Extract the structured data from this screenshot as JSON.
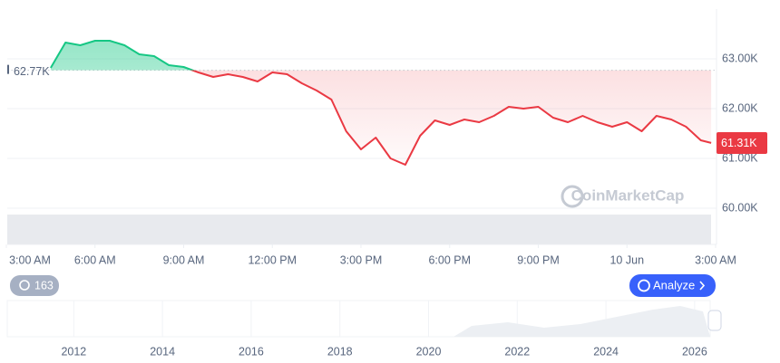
{
  "chart_data": {
    "type": "line",
    "x": [
      1.5,
      2,
      2.5,
      3,
      3.5,
      4,
      4.5,
      5,
      5.5,
      6,
      6.5,
      7,
      7.5,
      8,
      8.5,
      9,
      9.5,
      10,
      10.5,
      11,
      11.5,
      12,
      12.5,
      13,
      13.5,
      14,
      14.5,
      15,
      15.5,
      16,
      16.5,
      17,
      17.5,
      18,
      18.5,
      19,
      19.5,
      20,
      20.5,
      21,
      21.5,
      22,
      22.5,
      23,
      23.5,
      23.85
    ],
    "series": [
      {
        "values": [
          62818,
          63327,
          63273,
          63364,
          63364,
          63273,
          63091,
          63055,
          62873,
          62836,
          62727,
          62636,
          62691,
          62636,
          62545,
          62727,
          62691,
          62509,
          62364,
          62182,
          61545,
          61182,
          61418,
          61000,
          60873,
          61455,
          61764,
          61673,
          61782,
          61727,
          61855,
          62036,
          62000,
          62036,
          61818,
          61727,
          61855,
          61727,
          61636,
          61727,
          61545,
          61855,
          61782,
          61636,
          61364,
          61310
        ],
        "up_color": "#16c784",
        "down_color": "#ea3943"
      }
    ],
    "baseline": {
      "value": 62770,
      "label": "62.77K"
    },
    "last_price": {
      "value": 61310,
      "label": "61.31K"
    },
    "xlim": [
      0,
      24
    ],
    "xticks": [
      {
        "value": 0,
        "label": "3:00 AM"
      },
      {
        "value": 3,
        "label": "6:00 AM"
      },
      {
        "value": 6,
        "label": "9:00 AM"
      },
      {
        "value": 9,
        "label": "12:00 PM"
      },
      {
        "value": 12,
        "label": "3:00 PM"
      },
      {
        "value": 15,
        "label": "6:00 PM"
      },
      {
        "value": 18,
        "label": "9:00 PM"
      },
      {
        "value": 21,
        "label": "10 Jun"
      },
      {
        "value": 24,
        "label": "3:00 AM"
      }
    ],
    "ylim": [
      59300,
      64000
    ],
    "yticks": [
      {
        "value": 60000,
        "label": "60.00K"
      },
      {
        "value": 61000,
        "label": "61.00K"
      },
      {
        "value": 62000,
        "label": "62.00K"
      },
      {
        "value": 63000,
        "label": "63.00K"
      }
    ],
    "grid": true,
    "watermark": "CoinMarketCap",
    "badge": "163",
    "button": "Analyze",
    "navigator": {
      "xlim": [
        2010.5,
        2026.35
      ],
      "xticks": [
        2012,
        2014,
        2016,
        2018,
        2020,
        2022,
        2024,
        2026
      ]
    }
  }
}
